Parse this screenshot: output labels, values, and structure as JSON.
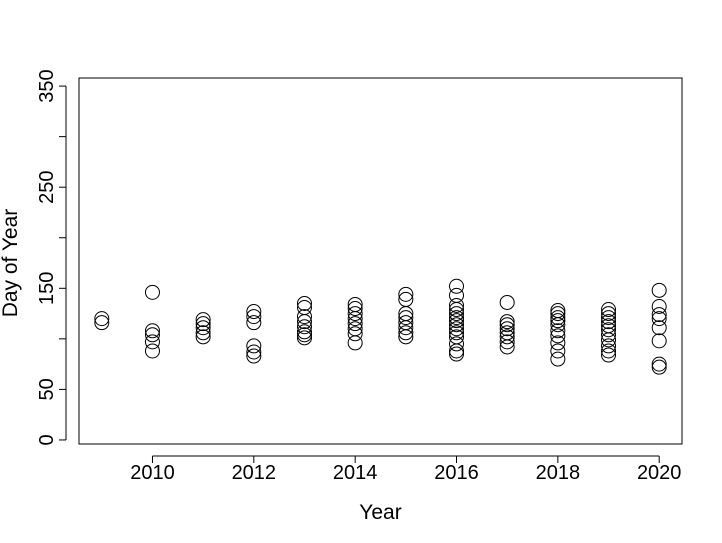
{
  "chart_data": {
    "type": "scatter",
    "title": "",
    "xlabel": "Year",
    "ylabel": "Day of Year",
    "xlim": [
      2008.55,
      2020.45
    ],
    "ylim": [
      -4,
      358
    ],
    "xticks": [
      2010,
      2012,
      2014,
      2016,
      2018,
      2020
    ],
    "yticks": [
      0,
      50,
      100,
      150,
      200,
      250,
      300,
      350
    ],
    "ytick_labels": [
      "0",
      "50",
      "",
      "150",
      "",
      "250",
      "",
      "350"
    ],
    "marker": "open-circle",
    "grid": false,
    "legend": "none",
    "series": [
      {
        "points": [
          [
            2009,
            116
          ],
          [
            2009,
            120
          ],
          [
            2010,
            88
          ],
          [
            2010,
            97
          ],
          [
            2010,
            104
          ],
          [
            2010,
            108
          ],
          [
            2010,
            146
          ],
          [
            2011,
            102
          ],
          [
            2011,
            106
          ],
          [
            2011,
            111
          ],
          [
            2011,
            115
          ],
          [
            2011,
            119
          ],
          [
            2012,
            83
          ],
          [
            2012,
            87
          ],
          [
            2012,
            93
          ],
          [
            2012,
            116
          ],
          [
            2012,
            122
          ],
          [
            2012,
            127
          ],
          [
            2013,
            101
          ],
          [
            2013,
            104
          ],
          [
            2013,
            107
          ],
          [
            2013,
            112
          ],
          [
            2013,
            117
          ],
          [
            2013,
            122
          ],
          [
            2013,
            131
          ],
          [
            2013,
            135
          ],
          [
            2014,
            96
          ],
          [
            2014,
            105
          ],
          [
            2014,
            110
          ],
          [
            2014,
            115
          ],
          [
            2014,
            120
          ],
          [
            2014,
            125
          ],
          [
            2014,
            130
          ],
          [
            2014,
            134
          ],
          [
            2015,
            102
          ],
          [
            2015,
            106
          ],
          [
            2015,
            111
          ],
          [
            2015,
            116
          ],
          [
            2015,
            121
          ],
          [
            2015,
            125
          ],
          [
            2015,
            139
          ],
          [
            2015,
            144
          ],
          [
            2016,
            85
          ],
          [
            2016,
            88
          ],
          [
            2016,
            95
          ],
          [
            2016,
            102
          ],
          [
            2016,
            106
          ],
          [
            2016,
            110
          ],
          [
            2016,
            114
          ],
          [
            2016,
            118
          ],
          [
            2016,
            121
          ],
          [
            2016,
            125
          ],
          [
            2016,
            129
          ],
          [
            2016,
            133
          ],
          [
            2016,
            143
          ],
          [
            2016,
            152
          ],
          [
            2017,
            92
          ],
          [
            2017,
            97
          ],
          [
            2017,
            102
          ],
          [
            2017,
            106
          ],
          [
            2017,
            110
          ],
          [
            2017,
            114
          ],
          [
            2017,
            117
          ],
          [
            2017,
            136
          ],
          [
            2018,
            80
          ],
          [
            2018,
            88
          ],
          [
            2018,
            96
          ],
          [
            2018,
            103
          ],
          [
            2018,
            108
          ],
          [
            2018,
            114
          ],
          [
            2018,
            118
          ],
          [
            2018,
            121
          ],
          [
            2018,
            125
          ],
          [
            2018,
            128
          ],
          [
            2019,
            84
          ],
          [
            2019,
            88
          ],
          [
            2019,
            93
          ],
          [
            2019,
            99
          ],
          [
            2019,
            104
          ],
          [
            2019,
            109
          ],
          [
            2019,
            113
          ],
          [
            2019,
            117
          ],
          [
            2019,
            121
          ],
          [
            2019,
            125
          ],
          [
            2019,
            129
          ],
          [
            2020,
            72
          ],
          [
            2020,
            75
          ],
          [
            2020,
            98
          ],
          [
            2020,
            111
          ],
          [
            2020,
            120
          ],
          [
            2020,
            124
          ],
          [
            2020,
            132
          ],
          [
            2020,
            148
          ]
        ]
      }
    ]
  }
}
